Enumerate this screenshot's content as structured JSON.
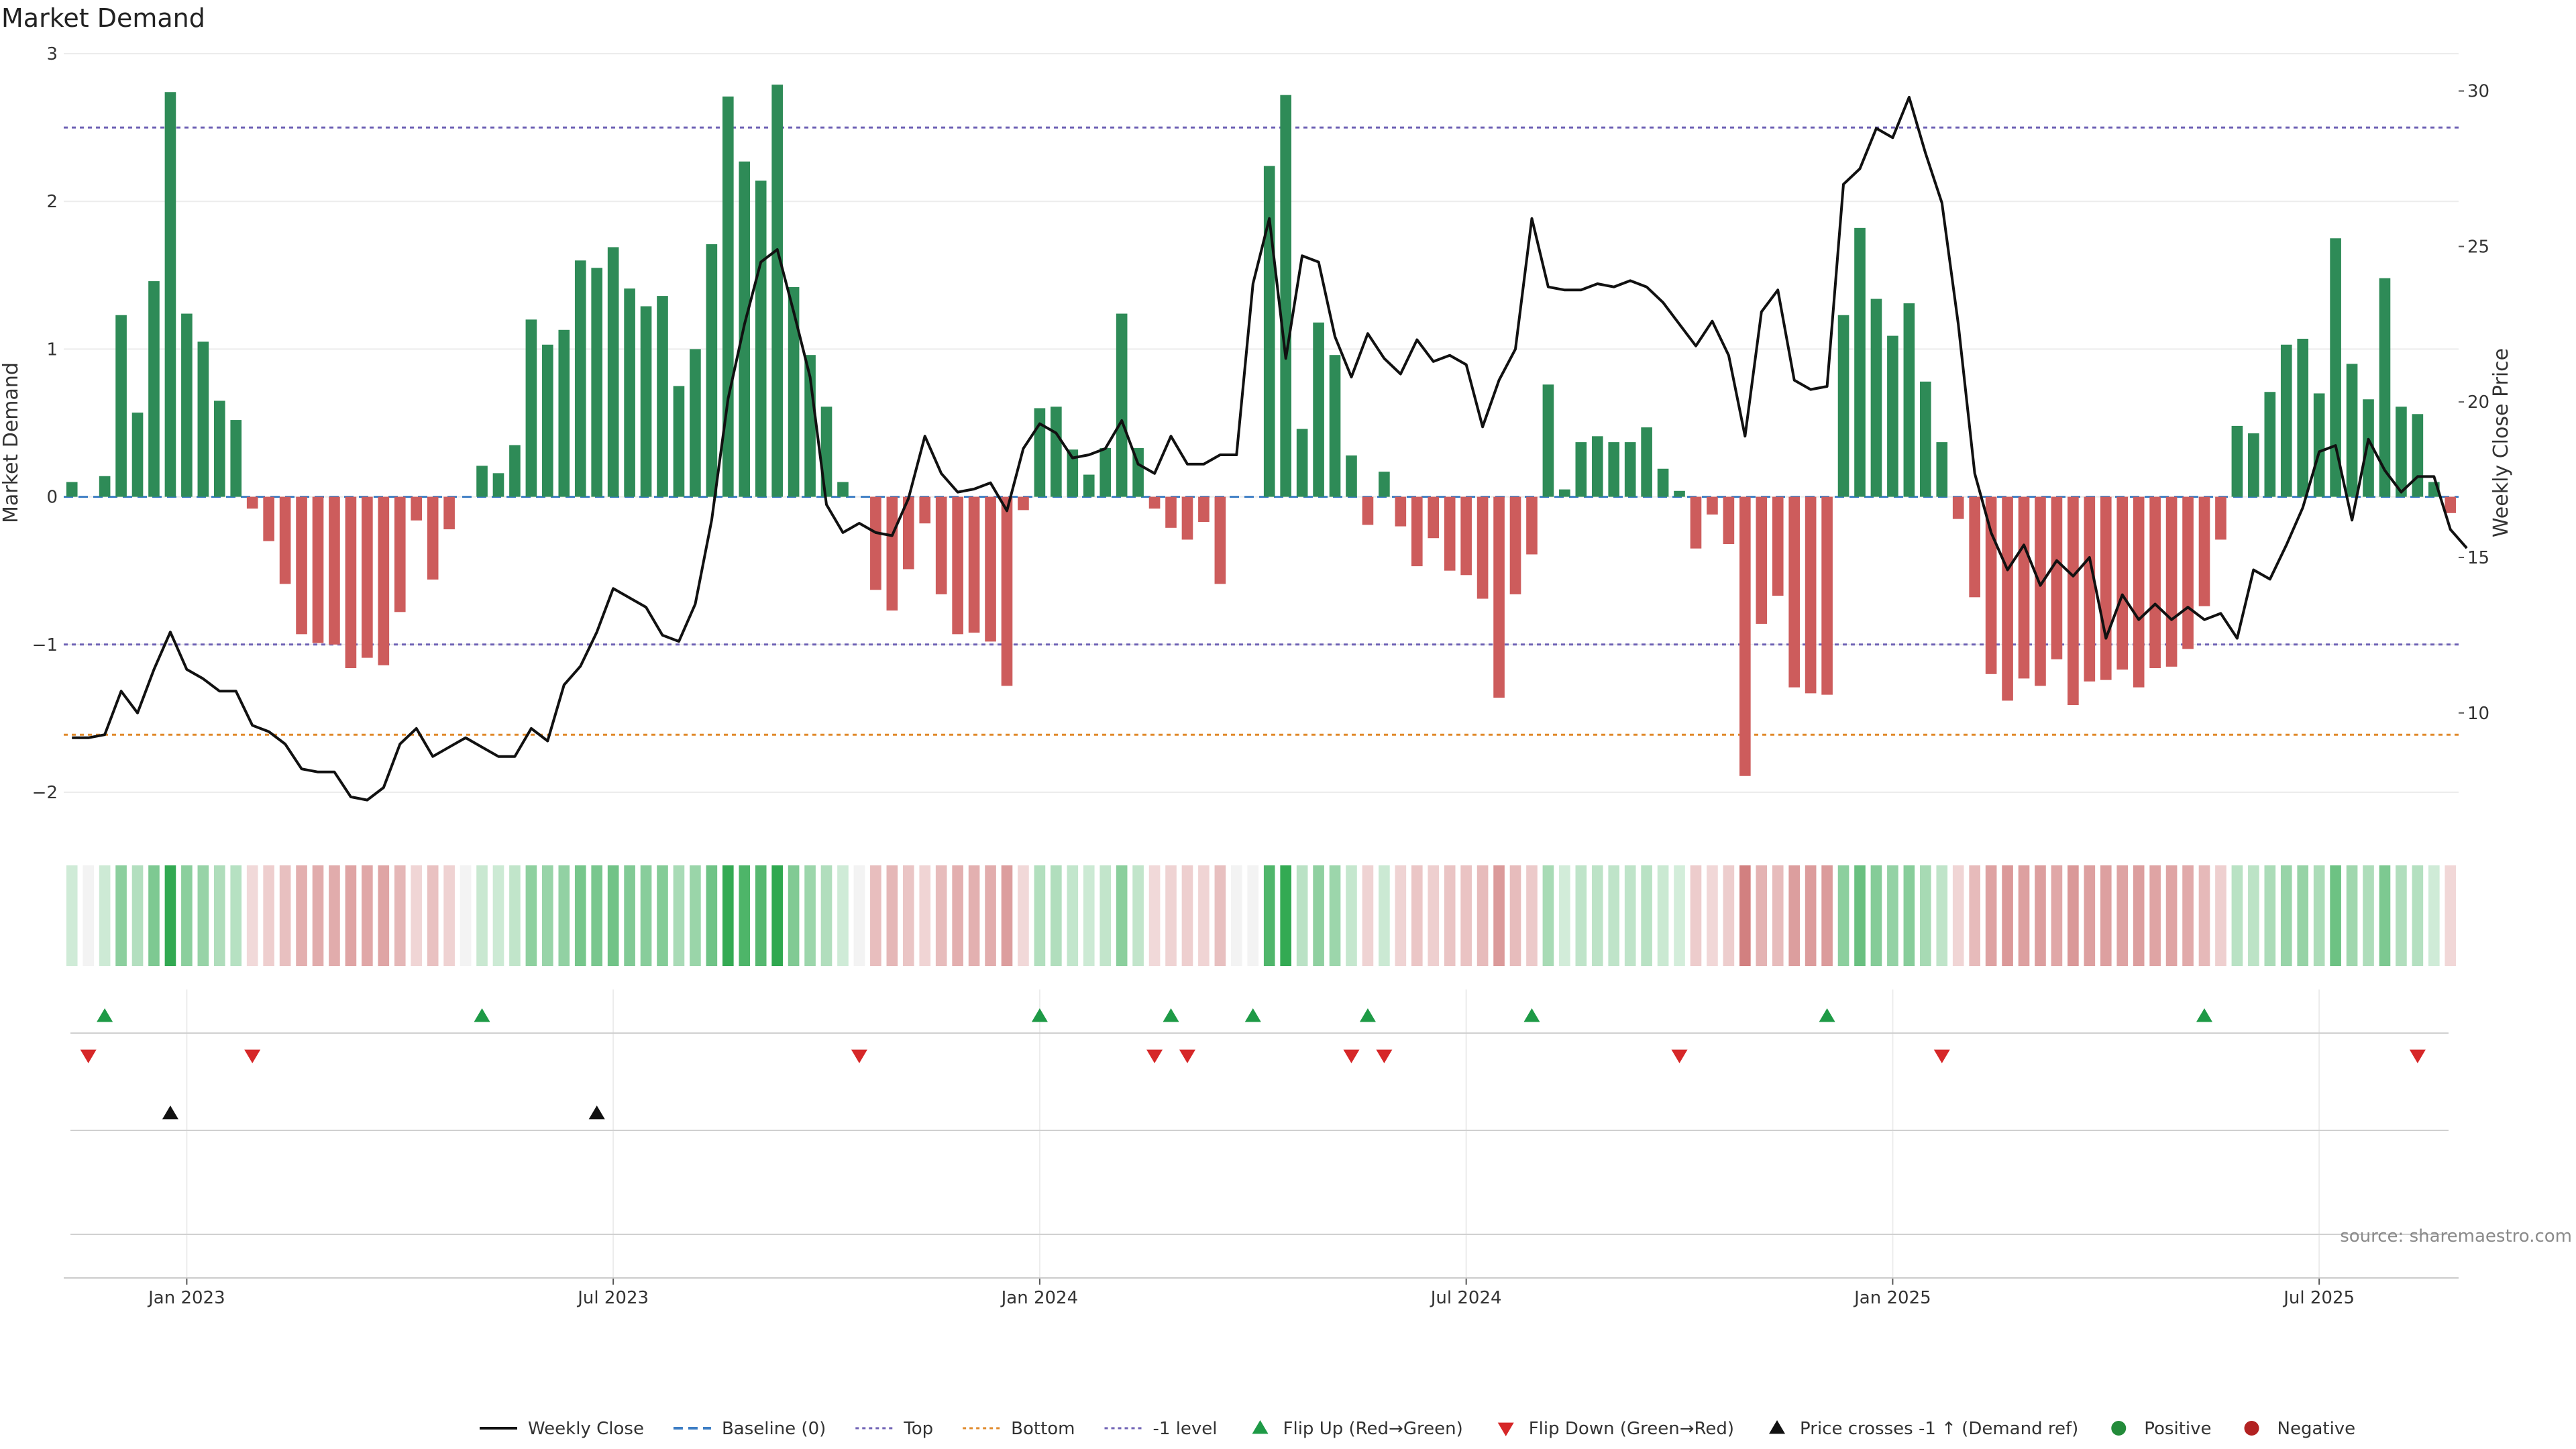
{
  "chart_data": {
    "type": "bar",
    "title": "Market Demand",
    "ylabel": "Market Demand",
    "y2label": "Weekly Close Price",
    "ylim": [
      -2.2,
      3.0
    ],
    "y2lim": [
      6.5,
      31.2
    ],
    "yticks": [
      3,
      2,
      1,
      0,
      -1,
      -2
    ],
    "y2ticks": [
      30,
      25,
      20,
      15,
      10
    ],
    "reference_lines": {
      "baseline": 0,
      "top": 2.5,
      "bottom": 9.3,
      "minus_one_level": -1
    },
    "x_tick_labels": [
      {
        "label": "Jan 2023",
        "week": 7
      },
      {
        "label": "Jul 2023",
        "week": 33
      },
      {
        "label": "Jan 2024",
        "week": 59
      },
      {
        "label": "Jul 2024",
        "week": 85
      },
      {
        "label": "Jan 2025",
        "week": 111
      },
      {
        "label": "Jul 2025",
        "week": 137
      }
    ],
    "demand": [
      0.1,
      0,
      0.14,
      1.23,
      0.57,
      1.46,
      2.74,
      1.24,
      1.05,
      0.65,
      0.52,
      -0.08,
      -0.3,
      -0.59,
      -0.93,
      -0.99,
      -1.0,
      -1.16,
      -1.09,
      -1.14,
      -0.78,
      -0.16,
      -0.56,
      -0.22,
      0,
      0.21,
      0.16,
      0.35,
      1.2,
      1.03,
      1.13,
      1.6,
      1.55,
      1.69,
      1.41,
      1.29,
      1.36,
      0.75,
      1.0,
      1.71,
      2.71,
      2.27,
      2.14,
      2.79,
      1.42,
      0.96,
      0.61,
      0.1,
      0,
      -0.63,
      -0.77,
      -0.49,
      -0.18,
      -0.66,
      -0.93,
      -0.92,
      -0.98,
      -1.28,
      -0.09,
      0.6,
      0.61,
      0.32,
      0.15,
      0.33,
      1.24,
      0.33,
      -0.08,
      -0.21,
      -0.29,
      -0.17,
      -0.59,
      0,
      0,
      2.24,
      2.72,
      0.46,
      1.18,
      0.96,
      0.28,
      -0.19,
      0.17,
      -0.2,
      -0.47,
      -0.28,
      -0.5,
      -0.53,
      -0.69,
      -1.36,
      -0.66,
      -0.39,
      0.76,
      0.05,
      0.37,
      0.41,
      0.37,
      0.37,
      0.47,
      0.19,
      0.04,
      -0.35,
      -0.12,
      -0.32,
      -1.89,
      -0.86,
      -0.67,
      -1.29,
      -1.33,
      -1.34,
      1.23,
      1.82,
      1.34,
      1.09,
      1.31,
      0.78,
      0.37,
      -0.15,
      -0.68,
      -1.2,
      -1.38,
      -1.23,
      -1.28,
      -1.1,
      -1.41,
      -1.25,
      -1.24,
      -1.17,
      -1.29,
      -1.16,
      -1.15,
      -1.03,
      -0.74,
      -0.29,
      0.48,
      0.43,
      0.71,
      1.03,
      1.07,
      0.7,
      1.75,
      0.9,
      0.66,
      1.48,
      0.61,
      0.56,
      0.1,
      -0.11
    ],
    "series": [
      {
        "name": "Weekly Close",
        "values": [
          9.2,
          9.2,
          9.3,
          10.7,
          10.0,
          11.4,
          12.6,
          11.4,
          11.1,
          10.7,
          10.7,
          9.6,
          9.4,
          9.0,
          8.2,
          8.1,
          8.1,
          7.3,
          7.2,
          7.6,
          9.0,
          9.5,
          8.6,
          8.9,
          9.2,
          8.9,
          8.6,
          8.6,
          9.5,
          9.1,
          10.9,
          11.5,
          12.6,
          14.0,
          13.7,
          13.4,
          12.5,
          12.3,
          13.5,
          16.2,
          20.1,
          22.5,
          24.5,
          24.9,
          22.9,
          20.8,
          16.7,
          15.8,
          16.1,
          15.8,
          15.7,
          16.9,
          18.9,
          17.7,
          17.1,
          17.2,
          17.4,
          16.5,
          18.5,
          19.3,
          19.0,
          18.2,
          18.3,
          18.5,
          19.4,
          18.0,
          17.7,
          18.9,
          18.0,
          18.0,
          18.3,
          18.3,
          23.8,
          25.9,
          21.4,
          24.7,
          24.5,
          22.1,
          20.8,
          22.2,
          21.4,
          20.9,
          22.0,
          21.3,
          21.5,
          21.2,
          19.2,
          20.7,
          21.7,
          25.9,
          23.7,
          23.6,
          23.6,
          23.8,
          23.7,
          23.9,
          23.7,
          23.2,
          22.5,
          21.8,
          22.6,
          21.5,
          18.9,
          22.9,
          23.6,
          20.7,
          20.4,
          20.5,
          27.0,
          27.5,
          28.8,
          28.5,
          29.8,
          28.0,
          26.4,
          22.5,
          17.7,
          15.8,
          14.6,
          15.4,
          14.1,
          14.9,
          14.4,
          15.0,
          12.4,
          13.8,
          13.0,
          13.5,
          13.0,
          13.4,
          13.0,
          13.2,
          12.4,
          14.6,
          14.3,
          15.4,
          16.6,
          18.4,
          18.6,
          16.2,
          18.8,
          17.8,
          17.1,
          17.6,
          17.6,
          15.9,
          15.3
        ]
      }
    ],
    "flip_up_weeks": [
      2,
      25,
      59,
      67,
      72,
      79,
      89,
      107,
      130
    ],
    "flip_down_weeks": [
      1,
      11,
      48,
      66,
      68,
      78,
      80,
      98,
      114,
      143
    ],
    "price_cross_weeks": [
      6,
      32
    ],
    "legend": [
      {
        "label": "Weekly Close",
        "kind": "line",
        "color": "#111111"
      },
      {
        "label": "Baseline (0)",
        "kind": "dash",
        "color": "#3c7dc4"
      },
      {
        "label": "Top",
        "kind": "dot",
        "color": "#6f62b5"
      },
      {
        "label": "Bottom",
        "kind": "dot",
        "color": "#e08a2c"
      },
      {
        "label": "-1 level",
        "kind": "dot",
        "color": "#6f62b5"
      },
      {
        "label": "Flip Up (Red→Green)",
        "kind": "tri-up",
        "color": "#1e9a46"
      },
      {
        "label": "Flip Down (Green→Red)",
        "kind": "tri-down",
        "color": "#d62728"
      },
      {
        "label": "Price crosses -1 ↑ (Demand ref)",
        "kind": "tri-up",
        "color": "#111111"
      },
      {
        "label": "Positive",
        "kind": "dot-marker",
        "color": "#238b3a"
      },
      {
        "label": "Negative",
        "kind": "dot-marker",
        "color": "#b22222"
      }
    ],
    "colors": {
      "positive_bar": "#2e8b57",
      "negative_bar": "#cd5c5c",
      "price_line": "#111111",
      "grid": "#ececec"
    }
  },
  "source": "source: sharemaestro.com"
}
